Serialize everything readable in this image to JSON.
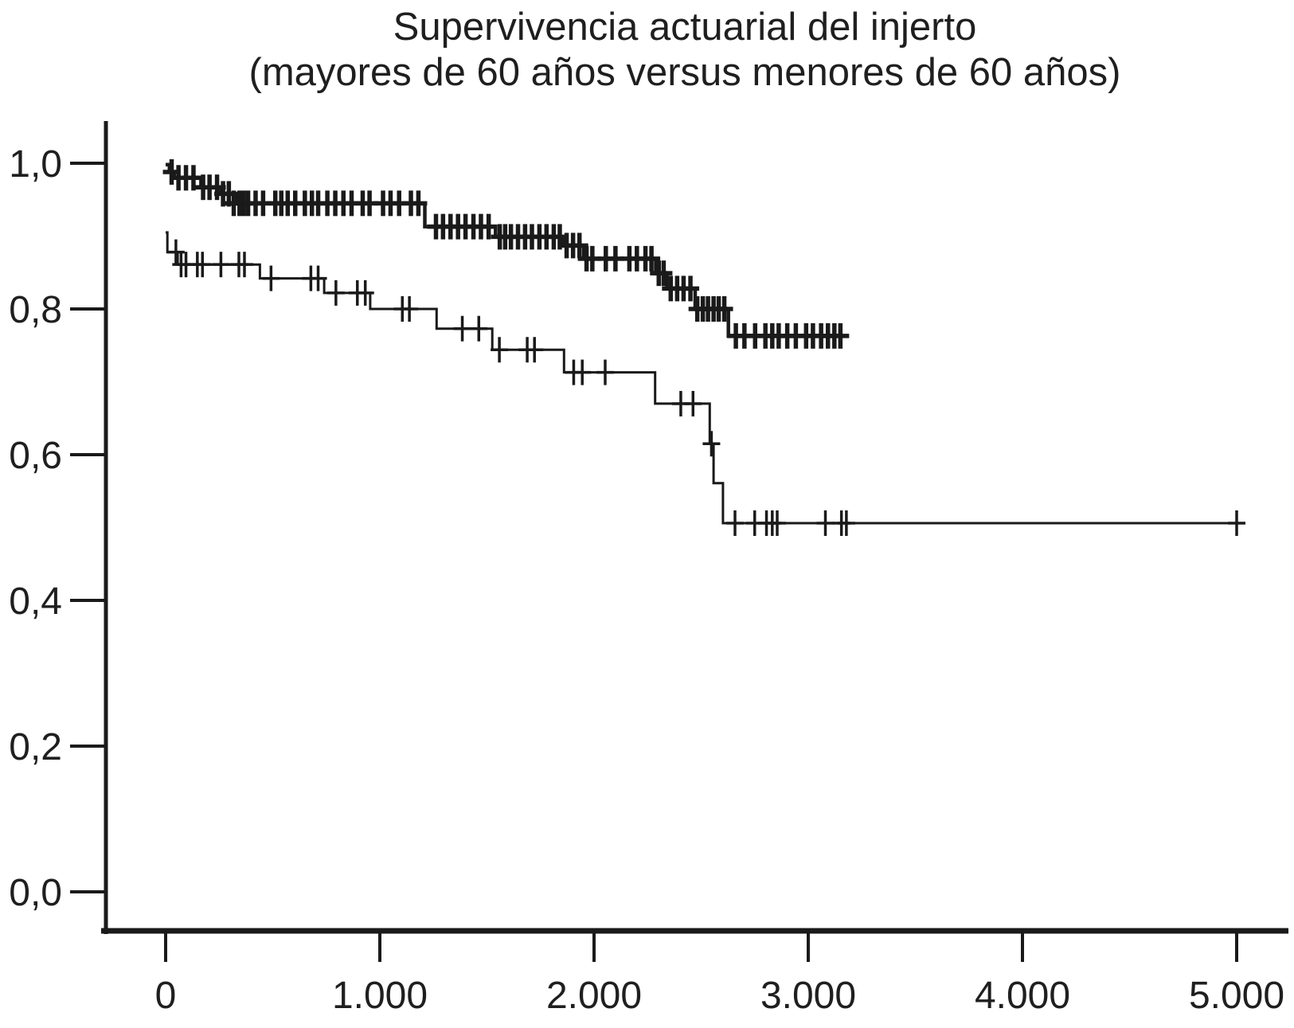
{
  "title": {
    "line1": "Supervivencia actuarial del injerto",
    "line2": "(mayores de 60 años versus menores de 60 años)"
  },
  "chart_data": {
    "type": "line",
    "subtype": "kaplan-meier-step-curves",
    "title": "Supervivencia actuarial del injerto (mayores de 60 años versus menores de 60 años)",
    "xlabel": "",
    "ylabel": "",
    "xlim": [
      0,
      5000
    ],
    "ylim": [
      0.0,
      1.0
    ],
    "grid": false,
    "legend_position": "none",
    "line_color": "#1a1a1a",
    "x_ticks": {
      "values": [
        0,
        1000,
        2000,
        3000,
        4000,
        5000
      ],
      "labels": [
        "0",
        "1.000",
        "2.000",
        "3.000",
        "4.000",
        "5.000"
      ]
    },
    "y_ticks": {
      "values": [
        0.0,
        0.2,
        0.4,
        0.6,
        0.8,
        1.0
      ],
      "labels": [
        "0,0",
        "0,2",
        "0,4",
        "0,6",
        "0,8",
        "1,0"
      ]
    },
    "series": [
      {
        "name": "curve-upper",
        "stroke_width": 4.5,
        "censor_stroke": 5.5,
        "steps": [
          [
            0,
            0.998
          ],
          [
            18,
            0.988
          ],
          [
            40,
            0.98
          ],
          [
            165,
            0.967
          ],
          [
            258,
            0.958
          ],
          [
            332,
            0.945
          ],
          [
            1210,
            0.913
          ],
          [
            1540,
            0.899
          ],
          [
            1857,
            0.887
          ],
          [
            1952,
            0.869
          ],
          [
            2288,
            0.849
          ],
          [
            2340,
            0.828
          ],
          [
            2472,
            0.8
          ],
          [
            2627,
            0.763
          ]
        ],
        "end_x": 3160,
        "censors": [
          [
            28,
            0.988
          ],
          [
            60,
            0.98
          ],
          [
            95,
            0.98
          ],
          [
            130,
            0.98
          ],
          [
            175,
            0.967
          ],
          [
            205,
            0.967
          ],
          [
            240,
            0.967
          ],
          [
            268,
            0.958
          ],
          [
            295,
            0.958
          ],
          [
            318,
            0.945
          ],
          [
            345,
            0.945
          ],
          [
            365,
            0.945
          ],
          [
            385,
            0.945
          ],
          [
            420,
            0.945
          ],
          [
            455,
            0.945
          ],
          [
            512,
            0.945
          ],
          [
            540,
            0.945
          ],
          [
            570,
            0.945
          ],
          [
            605,
            0.945
          ],
          [
            650,
            0.945
          ],
          [
            683,
            0.945
          ],
          [
            712,
            0.945
          ],
          [
            755,
            0.945
          ],
          [
            792,
            0.945
          ],
          [
            830,
            0.945
          ],
          [
            868,
            0.945
          ],
          [
            920,
            0.945
          ],
          [
            952,
            0.945
          ],
          [
            1015,
            0.945
          ],
          [
            1050,
            0.945
          ],
          [
            1090,
            0.945
          ],
          [
            1145,
            0.945
          ],
          [
            1180,
            0.945
          ],
          [
            1262,
            0.913
          ],
          [
            1295,
            0.913
          ],
          [
            1330,
            0.913
          ],
          [
            1365,
            0.913
          ],
          [
            1400,
            0.913
          ],
          [
            1437,
            0.913
          ],
          [
            1472,
            0.913
          ],
          [
            1508,
            0.913
          ],
          [
            1560,
            0.899
          ],
          [
            1585,
            0.899
          ],
          [
            1612,
            0.899
          ],
          [
            1645,
            0.899
          ],
          [
            1678,
            0.899
          ],
          [
            1710,
            0.899
          ],
          [
            1745,
            0.899
          ],
          [
            1778,
            0.899
          ],
          [
            1812,
            0.899
          ],
          [
            1840,
            0.899
          ],
          [
            1872,
            0.887
          ],
          [
            1902,
            0.887
          ],
          [
            1932,
            0.887
          ],
          [
            1965,
            0.869
          ],
          [
            1992,
            0.869
          ],
          [
            2055,
            0.869
          ],
          [
            2100,
            0.869
          ],
          [
            2165,
            0.869
          ],
          [
            2200,
            0.869
          ],
          [
            2240,
            0.869
          ],
          [
            2268,
            0.869
          ],
          [
            2302,
            0.849
          ],
          [
            2325,
            0.849
          ],
          [
            2358,
            0.828
          ],
          [
            2388,
            0.828
          ],
          [
            2418,
            0.828
          ],
          [
            2450,
            0.828
          ],
          [
            2482,
            0.8
          ],
          [
            2508,
            0.8
          ],
          [
            2532,
            0.8
          ],
          [
            2558,
            0.8
          ],
          [
            2582,
            0.8
          ],
          [
            2608,
            0.8
          ],
          [
            2662,
            0.763
          ],
          [
            2702,
            0.763
          ],
          [
            2752,
            0.763
          ],
          [
            2800,
            0.763
          ],
          [
            2832,
            0.763
          ],
          [
            2862,
            0.763
          ],
          [
            2902,
            0.763
          ],
          [
            2942,
            0.763
          ],
          [
            2990,
            0.763
          ],
          [
            3022,
            0.763
          ],
          [
            3060,
            0.763
          ],
          [
            3092,
            0.763
          ],
          [
            3122,
            0.763
          ],
          [
            3150,
            0.763
          ]
        ]
      },
      {
        "name": "curve-lower",
        "stroke_width": 3,
        "censor_stroke": 3.5,
        "steps": [
          [
            0,
            0.905
          ],
          [
            8,
            0.878
          ],
          [
            56,
            0.861
          ],
          [
            440,
            0.842
          ],
          [
            740,
            0.822
          ],
          [
            955,
            0.8
          ],
          [
            1265,
            0.773
          ],
          [
            1525,
            0.744
          ],
          [
            1860,
            0.713
          ],
          [
            2285,
            0.67
          ],
          [
            2540,
            0.615
          ],
          [
            2558,
            0.561
          ],
          [
            2602,
            0.506
          ]
        ],
        "end_x": 5020,
        "censors": [
          [
            48,
            0.878
          ],
          [
            72,
            0.861
          ],
          [
            95,
            0.861
          ],
          [
            148,
            0.861
          ],
          [
            172,
            0.861
          ],
          [
            258,
            0.861
          ],
          [
            342,
            0.861
          ],
          [
            368,
            0.861
          ],
          [
            492,
            0.842
          ],
          [
            678,
            0.842
          ],
          [
            712,
            0.842
          ],
          [
            795,
            0.822
          ],
          [
            895,
            0.822
          ],
          [
            932,
            0.822
          ],
          [
            1105,
            0.8
          ],
          [
            1138,
            0.8
          ],
          [
            1385,
            0.773
          ],
          [
            1462,
            0.773
          ],
          [
            1558,
            0.744
          ],
          [
            1688,
            0.744
          ],
          [
            1722,
            0.744
          ],
          [
            1905,
            0.713
          ],
          [
            1945,
            0.713
          ],
          [
            2052,
            0.713
          ],
          [
            2405,
            0.67
          ],
          [
            2462,
            0.67
          ],
          [
            2548,
            0.615
          ],
          [
            2658,
            0.506
          ],
          [
            2750,
            0.506
          ],
          [
            2805,
            0.506
          ],
          [
            2832,
            0.506
          ],
          [
            2855,
            0.506
          ],
          [
            3080,
            0.506
          ],
          [
            3155,
            0.506
          ],
          [
            3178,
            0.506
          ],
          [
            5000,
            0.506
          ]
        ]
      }
    ]
  }
}
